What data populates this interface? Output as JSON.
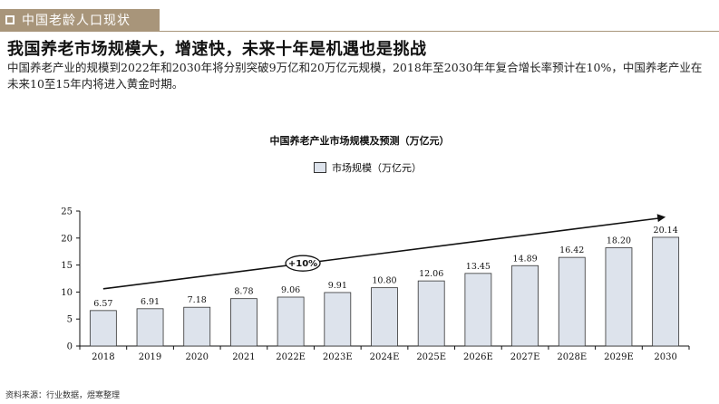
{
  "header": {
    "section_title": "中国老龄人口现状",
    "headline": "我国养老市场规模大，增速快，未来十年是机遇也是挑战",
    "paragraph": "中国养老产业的规模到2022年和2030年将分别突破9万亿和20万亿元规模，2018年至2030年年复合增长率预计在10%，中国养老产业在未来10至15年内将进入黄金时期。"
  },
  "footer": {
    "source": "资料来源：行业数据，煜寒整理"
  },
  "colors": {
    "section_bar": "#a8957a",
    "bar_fill": "#dde3ec",
    "bar_stroke": "#333333"
  },
  "chart_data": {
    "type": "bar",
    "title": "中国养老产业市场规模及预测（万亿元）",
    "legend": [
      "市场规模（万亿元）"
    ],
    "legend_position": "top-center",
    "categories": [
      "2018",
      "2019",
      "2020",
      "2021",
      "2022E",
      "2023E",
      "2024E",
      "2025E",
      "2026E",
      "2027E",
      "2028E",
      "2029E",
      "2030"
    ],
    "series": [
      {
        "name": "市场规模（万亿元）",
        "values": [
          6.57,
          6.91,
          7.18,
          8.78,
          9.06,
          9.91,
          10.8,
          12.06,
          13.45,
          14.89,
          16.42,
          18.2,
          20.14
        ],
        "labels": [
          "6.57",
          "6.91",
          "7.18",
          "8.78",
          "9.06",
          "9.91",
          "10.80",
          "12.06",
          "13.45",
          "14.89",
          "16.42",
          "18.20",
          "20.14"
        ]
      }
    ],
    "ylim": [
      0,
      25
    ],
    "yticks": [
      0,
      5,
      10,
      15,
      20,
      25
    ],
    "xlabel": "",
    "ylabel": "",
    "grid": false,
    "annotation": {
      "text": "+10%",
      "arrow_from_value": 10.6,
      "arrow_to_value": 23.9
    }
  }
}
